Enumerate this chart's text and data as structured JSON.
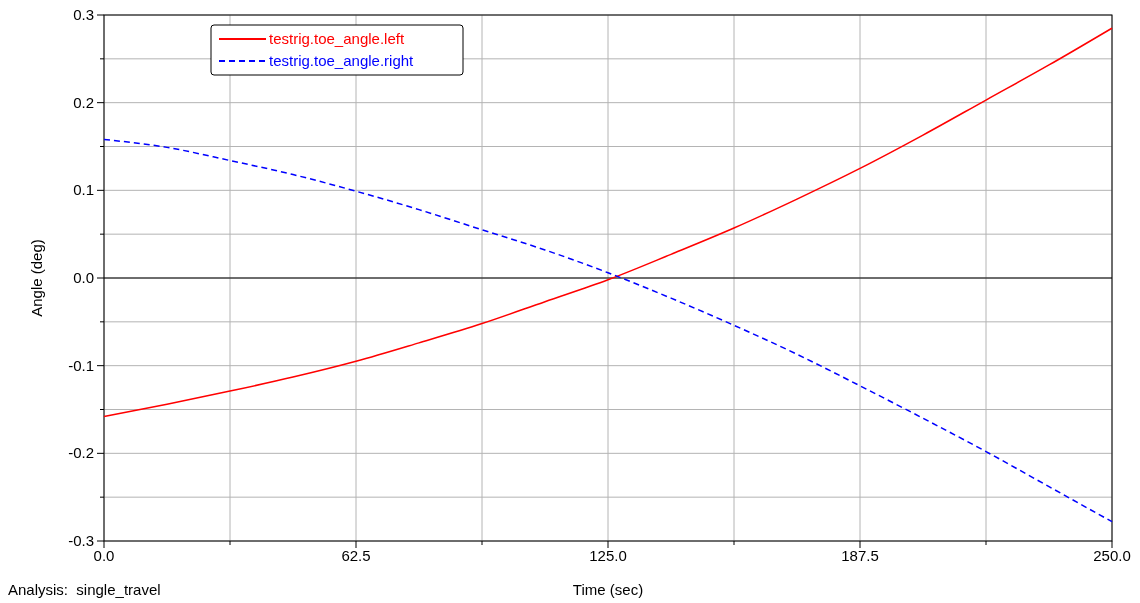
{
  "chart_data": {
    "type": "line",
    "xlabel": "Time (sec)",
    "ylabel": "Angle (deg)",
    "annotations": [
      "Analysis:  single_travel"
    ],
    "x": [
      0,
      15.625,
      31.25,
      46.875,
      62.5,
      78.125,
      93.75,
      109.375,
      125,
      140.625,
      156.25,
      171.875,
      187.5,
      203.125,
      218.75,
      234.375,
      250
    ],
    "series": [
      {
        "name": "testrig.toe_angle.left",
        "color": "#ff0000",
        "line_style": "solid",
        "values": [
          -0.158,
          -0.144,
          -0.129,
          -0.113,
          -0.095,
          -0.074,
          -0.052,
          -0.027,
          -0.002,
          0.027,
          0.057,
          0.09,
          0.125,
          0.163,
          0.203,
          0.243,
          0.285
        ]
      },
      {
        "name": "testrig.toe_angle.right",
        "color": "#0000ff",
        "line_style": "dashed",
        "values": [
          0.158,
          0.149,
          0.134,
          0.118,
          0.099,
          0.078,
          0.055,
          0.032,
          0.006,
          -0.023,
          -0.054,
          -0.087,
          -0.123,
          -0.16,
          -0.198,
          -0.238,
          -0.278
        ]
      }
    ],
    "xlim": [
      0,
      250
    ],
    "ylim": [
      -0.3,
      0.3
    ],
    "xticks": [
      {
        "value": 0,
        "label": "0.0"
      },
      {
        "value": 31.25,
        "label": null
      },
      62.5,
      {
        "value": 93.75,
        "label": null
      },
      {
        "value": 125,
        "label": "125.0"
      },
      {
        "value": 156.25,
        "label": null
      },
      187.5,
      {
        "value": 218.75,
        "label": null
      },
      {
        "value": 250,
        "label": "250.0"
      }
    ],
    "yticks": [
      {
        "value": -0.3,
        "label": "-0.3"
      },
      {
        "value": -0.25,
        "label": null
      },
      {
        "value": -0.2,
        "label": "-0.2"
      },
      {
        "value": -0.15,
        "label": null
      },
      {
        "value": -0.1,
        "label": "-0.1"
      },
      {
        "value": -0.05,
        "label": null
      },
      {
        "value": 0,
        "label": "0.0"
      },
      {
        "value": 0.05,
        "label": null
      },
      {
        "value": 0.1,
        "label": "0.1"
      },
      {
        "value": 0.15,
        "label": null
      },
      {
        "value": 0.2,
        "label": "0.2"
      },
      {
        "value": 0.25,
        "label": null
      },
      {
        "value": 0.3,
        "label": "0.3"
      }
    ],
    "ref_lines": [
      {
        "axis": "y",
        "value": 0,
        "color": "#000000"
      }
    ],
    "grid": true,
    "legend": "top left"
  }
}
